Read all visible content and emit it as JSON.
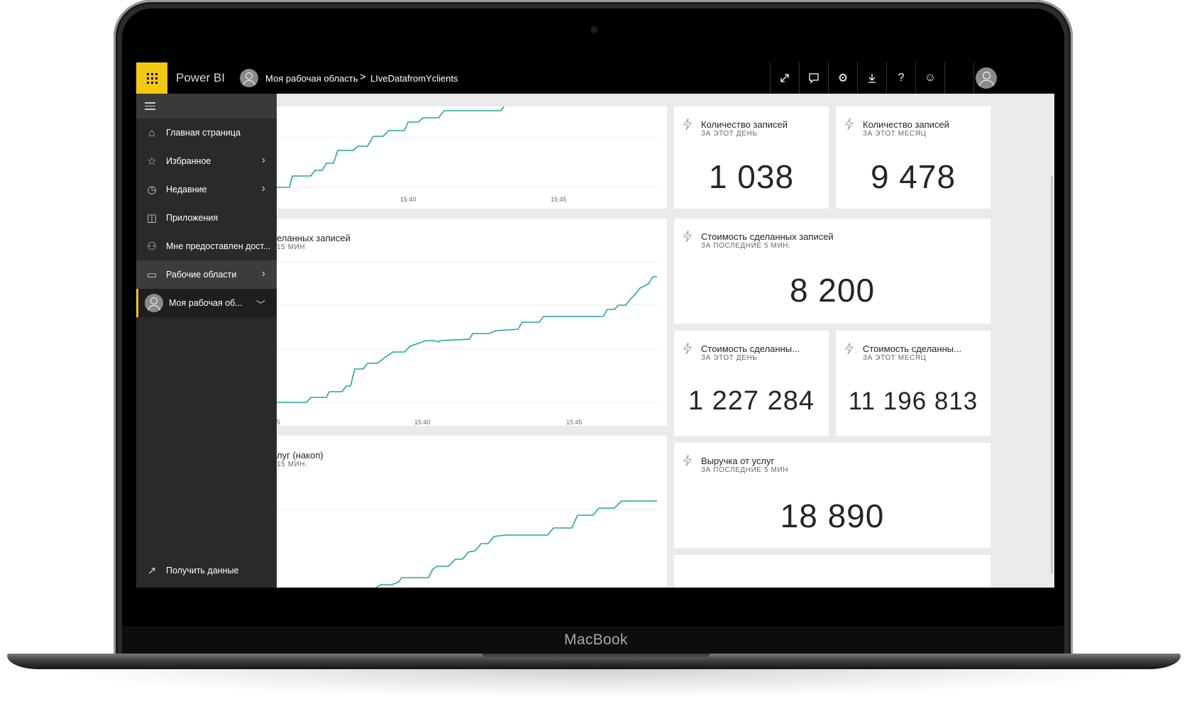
{
  "device": {
    "brand": "MacBook"
  },
  "topbar": {
    "app_name": "Power BI",
    "breadcrumb": {
      "workspace": "Моя рабочая область",
      "separator": ">",
      "dataset": "LIveDatafromYclients"
    },
    "actions": [
      "fullscreen-icon",
      "comment-icon",
      "settings-icon",
      "download-icon",
      "help-icon",
      "feedback-icon",
      "account-icon"
    ]
  },
  "sidebar": {
    "items": [
      {
        "label": "Главная страница",
        "icon": "home-icon"
      },
      {
        "label": "Избранное",
        "icon": "star-icon",
        "expandable": true
      },
      {
        "label": "Недавние",
        "icon": "clock-icon",
        "expandable": true
      },
      {
        "label": "Приложения",
        "icon": "apps-icon"
      },
      {
        "label": "Мне предоставлен дост...",
        "icon": "shared-icon"
      },
      {
        "label": "Рабочие области",
        "icon": "workspaces-icon",
        "expandable": true
      },
      {
        "label": "Моя рабочая об...",
        "icon": "avatar",
        "expanded": true
      }
    ],
    "get_data": {
      "label": "Получить данные",
      "icon": "arrow-upright-icon"
    }
  },
  "tiles": {
    "records_day": {
      "title": "Количество записей",
      "subtitle": "ЗА ЭТОТ ДЕНЬ",
      "value": "1 038"
    },
    "records_month": {
      "title": "Количество записей",
      "subtitle": "ЗА ЭТОТ МЕСЯЦ",
      "value": "9 478"
    },
    "cost_5min": {
      "title": "Стоимость сделанных записей",
      "subtitle": "ЗА ПОСЛЕДНИЕ 5 МИН.",
      "value": "8 200"
    },
    "cost_day": {
      "title": "Стоимость сделанны...",
      "subtitle": "ЗА ЭТОТ ДЕНЬ",
      "value": "1 227 284"
    },
    "cost_month": {
      "title": "Стоимость сделанны...",
      "subtitle": "ЗА ЭТОТ МЕСЯЦ",
      "value": "11 196 813"
    },
    "revenue_5min": {
      "title": "Выручка от услуг",
      "subtitle": "ЗА ПОСЛЕДНИЕ 5 МИН",
      "value": "18 890"
    }
  },
  "charts": {
    "chart1": {
      "ticks": [
        "15:40",
        "15:45"
      ]
    },
    "chart2": {
      "title_partial": "еланных записей",
      "subtitle_partial": "15 МИН",
      "ticks": [
        "5",
        "15:40",
        "15:45"
      ]
    },
    "chart3": {
      "title_partial": "луг (накоп)",
      "subtitle_partial": "15 МИН."
    }
  },
  "colors": {
    "accent": "#f2c811",
    "line": "#24a69c",
    "topbar": "#000000",
    "sidebar": "#2a2a2a"
  },
  "chart_data": [
    {
      "type": "line",
      "x": [],
      "series": [
        {
          "values": []
        }
      ]
    },
    {
      "type": "line",
      "x": [],
      "series": [
        {
          "values": []
        }
      ]
    },
    {
      "type": "line",
      "x": [],
      "series": [
        {
          "values": []
        }
      ]
    }
  ]
}
